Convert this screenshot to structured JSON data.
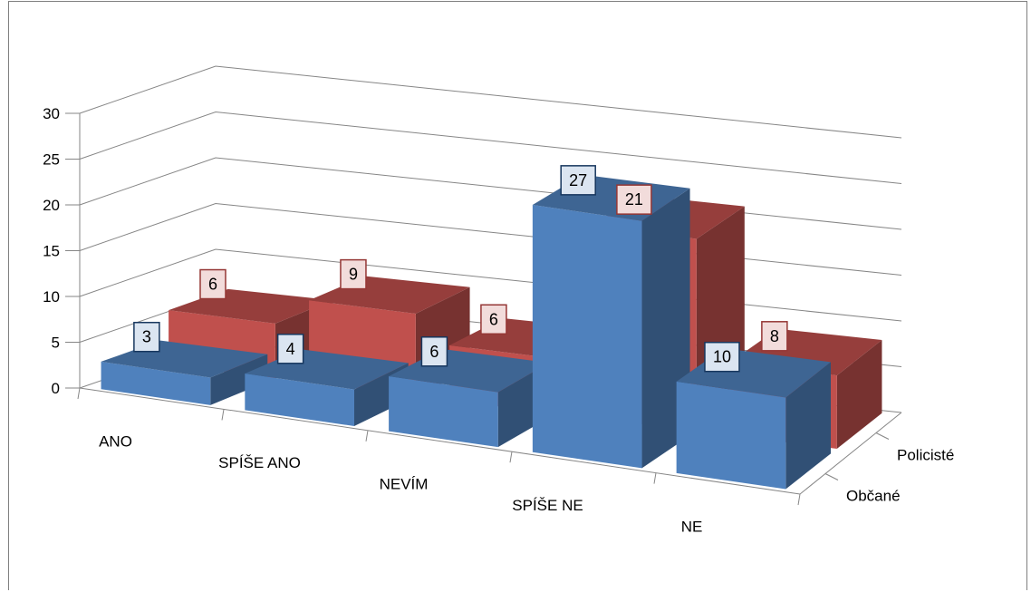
{
  "chart_data": {
    "type": "bar",
    "subtype": "3d-column",
    "categories": [
      "ANO",
      "SPÍŠE ANO",
      "NEVÍM",
      "SPÍŠE NE",
      "NE"
    ],
    "series": [
      {
        "name": "Občané",
        "values": [
          3,
          4,
          6,
          27,
          10
        ],
        "color": "#4f81bd"
      },
      {
        "name": "Policisté",
        "values": [
          6,
          9,
          6,
          21,
          8
        ],
        "color": "#c0504d"
      }
    ],
    "y_ticks": [
      "0",
      "5",
      "10",
      "15",
      "20",
      "25",
      "30"
    ],
    "ylim": [
      0,
      30
    ],
    "grid": true,
    "title": "",
    "xlabel": "",
    "ylabel": ""
  }
}
